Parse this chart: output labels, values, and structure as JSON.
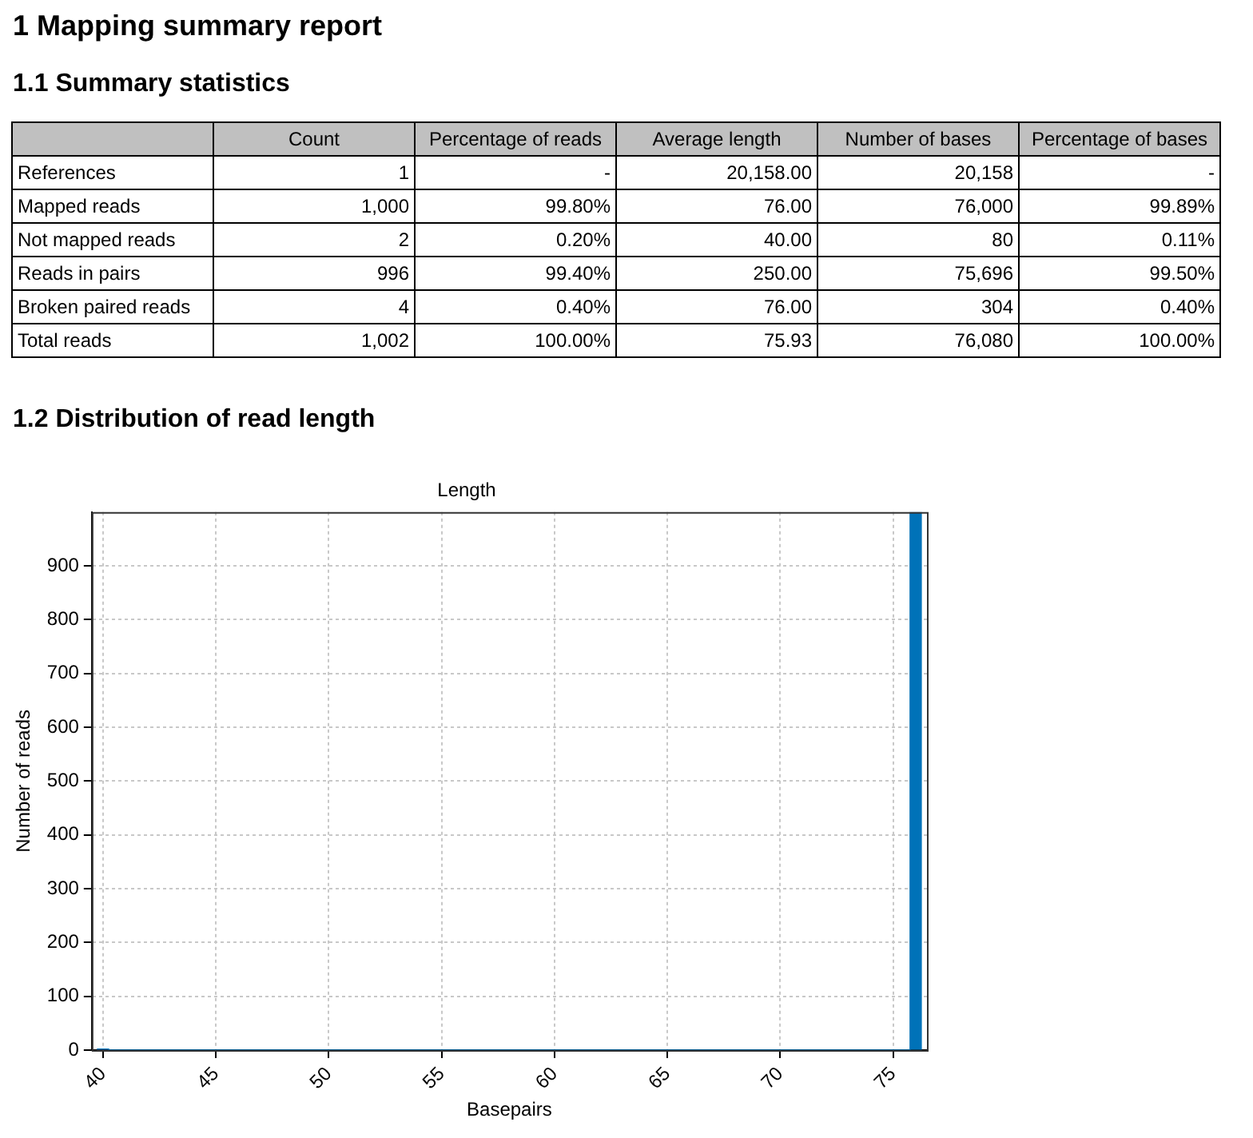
{
  "chart_data": [
    {
      "type": "other",
      "title": "1.1 Summary statistics",
      "annotations": [
        "1 Mapping summary report"
      ],
      "categories": [
        null,
        "Count",
        "Percentage of reads",
        "Average length",
        "Number of bases",
        "Percentage of bases"
      ],
      "y_categories": [
        "References",
        "Mapped reads",
        "Not mapped reads",
        "Reads in pairs",
        "Broken paired reads",
        "Total reads"
      ],
      "cell_labels": [
        [
          "1",
          "-",
          "20,158.00",
          "20,158",
          "-"
        ],
        [
          "1,000",
          "99.80%",
          "76.00",
          "76,000",
          "99.89%"
        ],
        [
          "2",
          "0.20%",
          "40.00",
          "80",
          "0.11%"
        ],
        [
          "996",
          "99.40%",
          "250.00",
          "75,696",
          "99.50%"
        ],
        [
          "4",
          "0.40%",
          "76.00",
          "304",
          "0.40%"
        ],
        [
          "1,002",
          "100.00%",
          "75.93",
          "76,080",
          "100.00%"
        ]
      ]
    },
    {
      "type": "histogram",
      "title": "Length",
      "annotations": [
        "1.2 Distribution of read length"
      ],
      "xlabel": "Basepairs",
      "ylabel": "Number of reads",
      "bins": [
        39.75,
        40.25,
        75.75,
        76.25
      ],
      "values": [
        2,
        0,
        1000
      ],
      "color": "#0072b8",
      "xlim": [
        39.5,
        76.5
      ],
      "xticks": [
        40,
        45,
        50,
        55,
        60,
        65,
        70,
        75
      ],
      "ylim": [
        0,
        1000
      ],
      "yticks": [
        0,
        100,
        200,
        300,
        400,
        500,
        600,
        700,
        800,
        900
      ],
      "grid": true
    }
  ]
}
